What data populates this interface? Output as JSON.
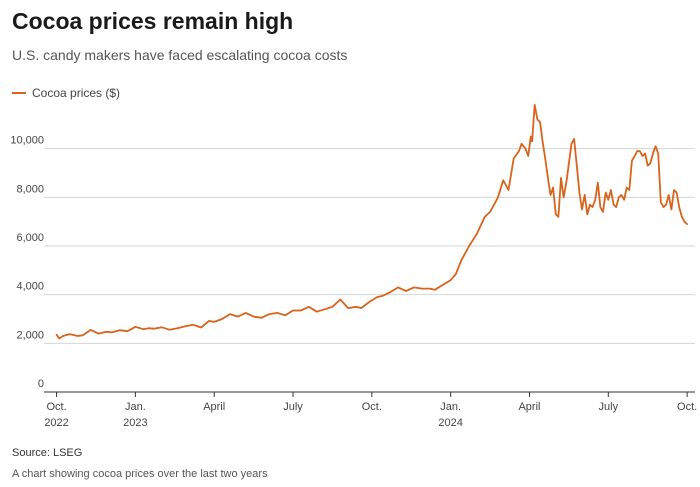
{
  "header": {
    "title": "Cocoa prices remain high",
    "subtitle": "U.S. candy makers have faced escalating cocoa costs"
  },
  "legend": {
    "label": "Cocoa prices ($)"
  },
  "footer": {
    "source": "Source: LSEG",
    "caption": "A chart showing cocoa prices over the last two years"
  },
  "colors": {
    "series": "#d9631a",
    "grid": "#d4d4d4",
    "axis": "#333333"
  },
  "chart_data": {
    "type": "line",
    "title": "Cocoa prices remain high",
    "subtitle": "U.S. candy makers have faced escalating cocoa costs",
    "xlabel": "",
    "ylabel": "",
    "xlim": [
      -0.25,
      24.3
    ],
    "ylim": [
      0,
      12000
    ],
    "grid": true,
    "legend_position": "top-left",
    "y_ticks": [
      0,
      2000,
      4000,
      6000,
      8000,
      10000
    ],
    "y_tick_labels": [
      "0",
      "2,000",
      "4,000",
      "6,000",
      "8,000",
      "10,000"
    ],
    "x_ticks": [
      {
        "x": 0,
        "line1": "Oct.",
        "line2": "2022"
      },
      {
        "x": 3,
        "line1": "Jan.",
        "line2": "2023"
      },
      {
        "x": 6,
        "line1": "April",
        "line2": ""
      },
      {
        "x": 9,
        "line1": "July",
        "line2": ""
      },
      {
        "x": 12,
        "line1": "Oct.",
        "line2": ""
      },
      {
        "x": 15,
        "line1": "Jan.",
        "line2": "2024"
      },
      {
        "x": 18,
        "line1": "April",
        "line2": ""
      },
      {
        "x": 21,
        "line1": "July",
        "line2": ""
      },
      {
        "x": 24,
        "line1": "Oct.",
        "line2": ""
      }
    ],
    "series": [
      {
        "name": "Cocoa prices ($)",
        "x": [
          0,
          0.1,
          0.25,
          0.5,
          0.8,
          1.0,
          1.3,
          1.6,
          1.9,
          2.1,
          2.4,
          2.7,
          3.0,
          3.3,
          3.5,
          3.7,
          4.0,
          4.3,
          4.6,
          4.9,
          5.2,
          5.5,
          5.8,
          6.0,
          6.3,
          6.6,
          6.9,
          7.2,
          7.5,
          7.8,
          8.1,
          8.4,
          8.7,
          9.0,
          9.3,
          9.6,
          9.9,
          10.2,
          10.5,
          10.8,
          11.1,
          11.4,
          11.6,
          11.9,
          12.2,
          12.4,
          12.7,
          13.0,
          13.3,
          13.6,
          13.9,
          14.2,
          14.4,
          14.7,
          15.0,
          15.2,
          15.4,
          15.7,
          16.0,
          16.3,
          16.5,
          16.8,
          17.0,
          17.2,
          17.4,
          17.6,
          17.7,
          17.85,
          17.95,
          18.05,
          18.1,
          18.2,
          18.3,
          18.4,
          18.5,
          18.6,
          18.7,
          18.8,
          18.9,
          19.0,
          19.1,
          19.2,
          19.3,
          19.4,
          19.5,
          19.6,
          19.7,
          19.8,
          19.9,
          20.0,
          20.1,
          20.2,
          20.3,
          20.4,
          20.5,
          20.6,
          20.7,
          20.8,
          20.9,
          21.0,
          21.1,
          21.2,
          21.3,
          21.4,
          21.5,
          21.6,
          21.7,
          21.8,
          21.9,
          22.0,
          22.1,
          22.2,
          22.3,
          22.4,
          22.5,
          22.6,
          22.7,
          22.8,
          22.9,
          23.0,
          23.1,
          23.2,
          23.3,
          23.4,
          23.5,
          23.6,
          23.7,
          23.8,
          23.9,
          24.0
        ],
        "values": [
          2350,
          2200,
          2300,
          2380,
          2300,
          2330,
          2550,
          2400,
          2480,
          2450,
          2540,
          2500,
          2680,
          2580,
          2620,
          2600,
          2660,
          2560,
          2620,
          2700,
          2760,
          2650,
          2920,
          2880,
          3000,
          3200,
          3100,
          3250,
          3100,
          3050,
          3200,
          3250,
          3150,
          3350,
          3350,
          3500,
          3300,
          3400,
          3500,
          3800,
          3450,
          3500,
          3450,
          3700,
          3900,
          3950,
          4100,
          4300,
          4150,
          4300,
          4250,
          4250,
          4200,
          4400,
          4600,
          4850,
          5400,
          6000,
          6500,
          7200,
          7400,
          8000,
          8700,
          8300,
          9600,
          9900,
          10200,
          10000,
          9700,
          10500,
          10300,
          11800,
          11200,
          11100,
          10300,
          9600,
          8800,
          8100,
          8400,
          7300,
          7200,
          8800,
          8000,
          8600,
          9400,
          10200,
          10400,
          9300,
          8200,
          7500,
          8100,
          7300,
          7700,
          7600,
          7900,
          8600,
          7600,
          7400,
          8200,
          7900,
          8300,
          7700,
          7600,
          8000,
          8100,
          7900,
          8400,
          8300,
          9500,
          9700,
          9900,
          9900,
          9700,
          9800,
          9300,
          9400,
          9800,
          10100,
          9800,
          7800,
          7600,
          7700,
          8100,
          7500,
          8300,
          8200,
          7600,
          7200,
          7000,
          6900
        ]
      }
    ]
  }
}
